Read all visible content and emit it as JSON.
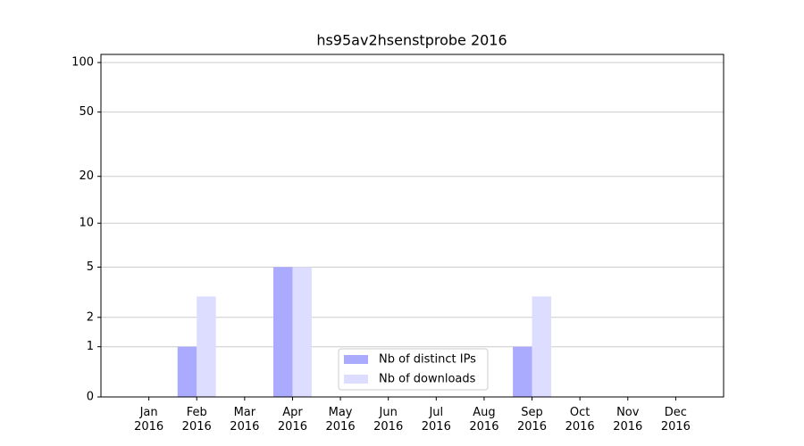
{
  "chart_data": {
    "type": "bar",
    "title": "hs95av2hsenstprobe 2016",
    "categories": [
      "Jan 2016",
      "Feb 2016",
      "Mar 2016",
      "Apr 2016",
      "May 2016",
      "Jun 2016",
      "Jul 2016",
      "Aug 2016",
      "Sep 2016",
      "Oct 2016",
      "Nov 2016",
      "Dec 2016"
    ],
    "series": [
      {
        "name": "Nb of distinct IPs",
        "color": "#aaaaff",
        "values": [
          0,
          1,
          0,
          5,
          0,
          0,
          0,
          0,
          1,
          0,
          0,
          0
        ]
      },
      {
        "name": "Nb of downloads",
        "color": "#ddddff",
        "values": [
          0,
          3,
          0,
          5,
          0,
          0,
          0,
          0,
          3,
          0,
          0,
          0
        ]
      }
    ],
    "yscale": "log1p",
    "ylim": [
      0,
      112
    ],
    "yticks": [
      0,
      1,
      2,
      5,
      10,
      20,
      50,
      100
    ],
    "grid": true,
    "legend": "lower center"
  }
}
